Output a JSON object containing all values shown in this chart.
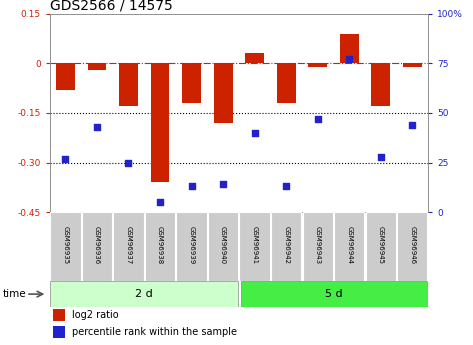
{
  "title": "GDS2566 / 14575",
  "samples": [
    "GSM96935",
    "GSM96936",
    "GSM96937",
    "GSM96938",
    "GSM96939",
    "GSM96940",
    "GSM96941",
    "GSM96942",
    "GSM96943",
    "GSM96944",
    "GSM96945",
    "GSM96946"
  ],
  "log2_ratio": [
    -0.08,
    -0.02,
    -0.13,
    -0.36,
    -0.12,
    -0.18,
    0.03,
    -0.12,
    -0.01,
    0.09,
    -0.13,
    -0.01
  ],
  "percentile_rank": [
    27,
    43,
    25,
    5,
    13,
    14,
    40,
    13,
    47,
    77,
    28,
    44
  ],
  "group1_label": "2 d",
  "group2_label": "5 d",
  "group1_count": 6,
  "group2_count": 6,
  "ylim_left": [
    -0.45,
    0.15
  ],
  "ylim_right": [
    0,
    100
  ],
  "bar_color": "#cc2200",
  "dot_color": "#2222cc",
  "bar_width": 0.6,
  "hline_zero_color": "#cc2200",
  "hline_dotted_color": "#000000",
  "group1_bg": "#ccffcc",
  "group2_bg": "#44ee44",
  "sample_bg": "#cccccc",
  "time_label": "time",
  "legend_log2": "log2 ratio",
  "legend_pct": "percentile rank within the sample",
  "title_fontsize": 10,
  "tick_fontsize": 6.5,
  "right_tick_color": "#2222cc"
}
